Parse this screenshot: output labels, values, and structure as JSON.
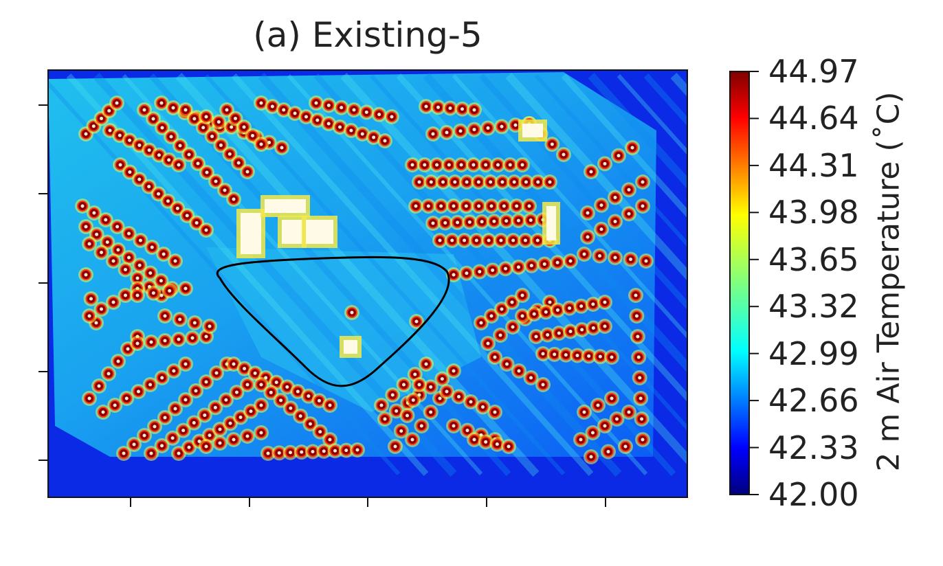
{
  "chart_data": {
    "type": "heatmap",
    "title": "(a) Existing-5",
    "colormap": "jet",
    "colorbar": {
      "label": "2 m Air Temperature (˚C)",
      "range": [
        42.0,
        44.97
      ],
      "ticks": [
        "44.97",
        "44.64",
        "44.31",
        "43.98",
        "43.65",
        "43.32",
        "42.99",
        "42.66",
        "42.33",
        "42.00"
      ]
    },
    "annotation": "black closed contour outlining the central open area",
    "xlabel": "",
    "ylabel": "",
    "x_tick_labels_visible": false,
    "y_tick_labels_visible": false,
    "grid": false
  }
}
